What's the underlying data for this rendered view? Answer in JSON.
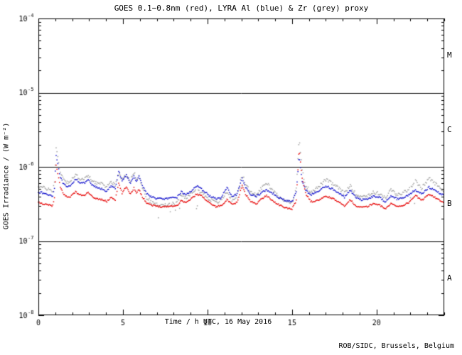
{
  "title": "GOES 0.1−0.8nm (red), LYRA Al (blue) & Zr (grey) proxy",
  "credit": "ROB/SIDC, Brussels, Belgium",
  "chart_data": {
    "type": "scatter",
    "subtype": "time-series log plot, dotted points",
    "title": "GOES 0.1−0.8nm (red), LYRA Al (blue) & Zr (grey) proxy",
    "xlabel": "Time / h UTC, 16 May 2016",
    "ylabel": "GOES Irradiance / (W m⁻²)",
    "xlim": [
      0,
      24
    ],
    "ylim_exp": [
      -8,
      -4
    ],
    "xticks_major": [
      0,
      5,
      10,
      15,
      20
    ],
    "xtick_minor_step": 1,
    "ytick_exponents": [
      -4,
      -5,
      -6,
      -7,
      -8
    ],
    "ytick_labels": [
      "10⁻⁴",
      "10⁻⁵",
      "10⁻⁶",
      "10⁻⁷",
      "10⁻⁸"
    ],
    "hlines_exp": [
      -5,
      -6,
      -7
    ],
    "grid": "off",
    "legend": "in title (colors)",
    "class_labels": [
      {
        "label": "M",
        "band_exp": [
          -5,
          -4
        ]
      },
      {
        "label": "C",
        "band_exp": [
          -6,
          -5
        ]
      },
      {
        "label": "B",
        "band_exp": [
          -7,
          -6
        ]
      },
      {
        "label": "A",
        "band_exp": [
          -8,
          -7
        ]
      }
    ],
    "colors": {
      "red": "#e60000",
      "blue": "#1111cc",
      "grey": "#a3a3a3",
      "axis": "#000000",
      "background": "#ffffff"
    },
    "series": [
      {
        "key": "grey",
        "label": "LYRA Zr proxy (grey)",
        "color_key": "grey"
      },
      {
        "key": "blue",
        "label": "LYRA Al proxy (blue)",
        "color_key": "blue"
      },
      {
        "key": "red",
        "label": "GOES 0.1−0.8nm (red)",
        "color_key": "red"
      }
    ],
    "values_unit": "1e-7 W m^-2",
    "anchors": {
      "t": [
        0.0,
        0.3,
        0.6,
        0.85,
        0.95,
        1.05,
        1.15,
        1.3,
        1.5,
        1.7,
        1.9,
        2.2,
        2.45,
        2.7,
        2.95,
        3.2,
        3.5,
        3.8,
        4.05,
        4.3,
        4.55,
        4.75,
        4.95,
        5.2,
        5.45,
        5.65,
        5.8,
        5.95,
        6.15,
        6.4,
        6.7,
        7.0,
        7.4,
        7.8,
        8.2,
        8.45,
        8.75,
        9.15,
        9.35,
        9.7,
        10.1,
        10.5,
        10.8,
        11.15,
        11.45,
        11.75,
        12.05,
        12.25,
        12.55,
        12.9,
        13.2,
        13.5,
        13.85,
        14.2,
        14.6,
        15.0,
        15.25,
        15.42,
        15.6,
        15.8,
        16.1,
        16.5,
        17.0,
        17.35,
        17.7,
        18.1,
        18.45,
        18.75,
        19.1,
        19.45,
        19.8,
        20.15,
        20.5,
        20.85,
        21.2,
        21.55,
        21.9,
        22.3,
        22.65,
        23.1,
        23.45,
        23.75,
        24.0
      ],
      "red": [
        3.3,
        3.15,
        3.05,
        3.0,
        3.8,
        10.5,
        8.0,
        5.3,
        4.3,
        3.9,
        4.0,
        4.6,
        4.2,
        4.1,
        4.5,
        3.9,
        3.7,
        3.6,
        3.4,
        3.9,
        3.6,
        6.0,
        4.4,
        5.4,
        4.3,
        5.2,
        4.5,
        5.0,
        3.9,
        3.3,
        3.05,
        2.95,
        2.9,
        2.95,
        3.0,
        3.5,
        3.3,
        3.9,
        4.3,
        4.0,
        3.3,
        2.9,
        3.0,
        3.6,
        3.1,
        3.3,
        5.6,
        4.3,
        3.4,
        3.2,
        3.7,
        4.1,
        3.5,
        3.1,
        2.8,
        2.7,
        3.5,
        18.0,
        7.0,
        4.4,
        3.4,
        3.5,
        4.0,
        3.8,
        3.4,
        3.0,
        3.6,
        3.0,
        2.85,
        2.9,
        3.2,
        3.1,
        2.7,
        3.2,
        2.95,
        3.0,
        3.3,
        4.15,
        3.5,
        4.3,
        3.9,
        3.5,
        3.2
      ],
      "blue": [
        4.6,
        4.4,
        4.2,
        4.1,
        5.2,
        14.5,
        11.0,
        7.2,
        5.8,
        5.3,
        5.5,
        6.9,
        6.2,
        6.0,
        6.6,
        5.6,
        5.2,
        5.0,
        4.7,
        5.5,
        5.1,
        8.9,
        6.3,
        7.8,
        6.0,
        7.4,
        6.4,
        7.6,
        5.6,
        4.4,
        3.9,
        3.75,
        3.7,
        3.75,
        3.9,
        4.6,
        4.2,
        5.0,
        5.5,
        4.9,
        4.1,
        3.7,
        3.8,
        5.3,
        3.9,
        4.3,
        6.9,
        5.3,
        4.3,
        4.0,
        4.5,
        4.9,
        4.4,
        3.9,
        3.5,
        3.4,
        4.5,
        14.0,
        6.5,
        4.9,
        4.2,
        4.6,
        5.5,
        5.1,
        4.5,
        3.9,
        4.9,
        3.9,
        3.6,
        3.7,
        4.0,
        3.9,
        3.4,
        4.1,
        3.7,
        3.8,
        4.2,
        4.9,
        4.3,
        5.3,
        4.8,
        4.4,
        4.1
      ],
      "grey": [
        5.5,
        5.2,
        5.0,
        4.8,
        6.2,
        18.0,
        13.5,
        8.6,
        6.8,
        6.2,
        6.4,
        7.7,
        7.0,
        6.8,
        7.5,
        6.5,
        6.0,
        5.8,
        5.4,
        6.3,
        5.8,
        8.0,
        6.9,
        8.0,
        6.6,
        8.4,
        7.0,
        7.4,
        5.2,
        3.8,
        3.3,
        3.1,
        3.0,
        3.1,
        3.3,
        4.2,
        3.7,
        4.7,
        5.0,
        4.4,
        3.7,
        3.3,
        3.5,
        4.6,
        3.6,
        4.0,
        8.2,
        5.9,
        4.5,
        4.2,
        5.2,
        6.1,
        4.9,
        4.0,
        3.4,
        3.3,
        5.0,
        25.0,
        9.0,
        5.6,
        4.6,
        5.2,
        6.7,
        6.0,
        5.3,
        4.4,
        5.7,
        4.3,
        4.0,
        4.1,
        4.5,
        4.4,
        3.8,
        4.9,
        4.2,
        4.4,
        5.0,
        6.4,
        5.1,
        7.0,
        6.0,
        5.2,
        4.7
      ]
    }
  }
}
